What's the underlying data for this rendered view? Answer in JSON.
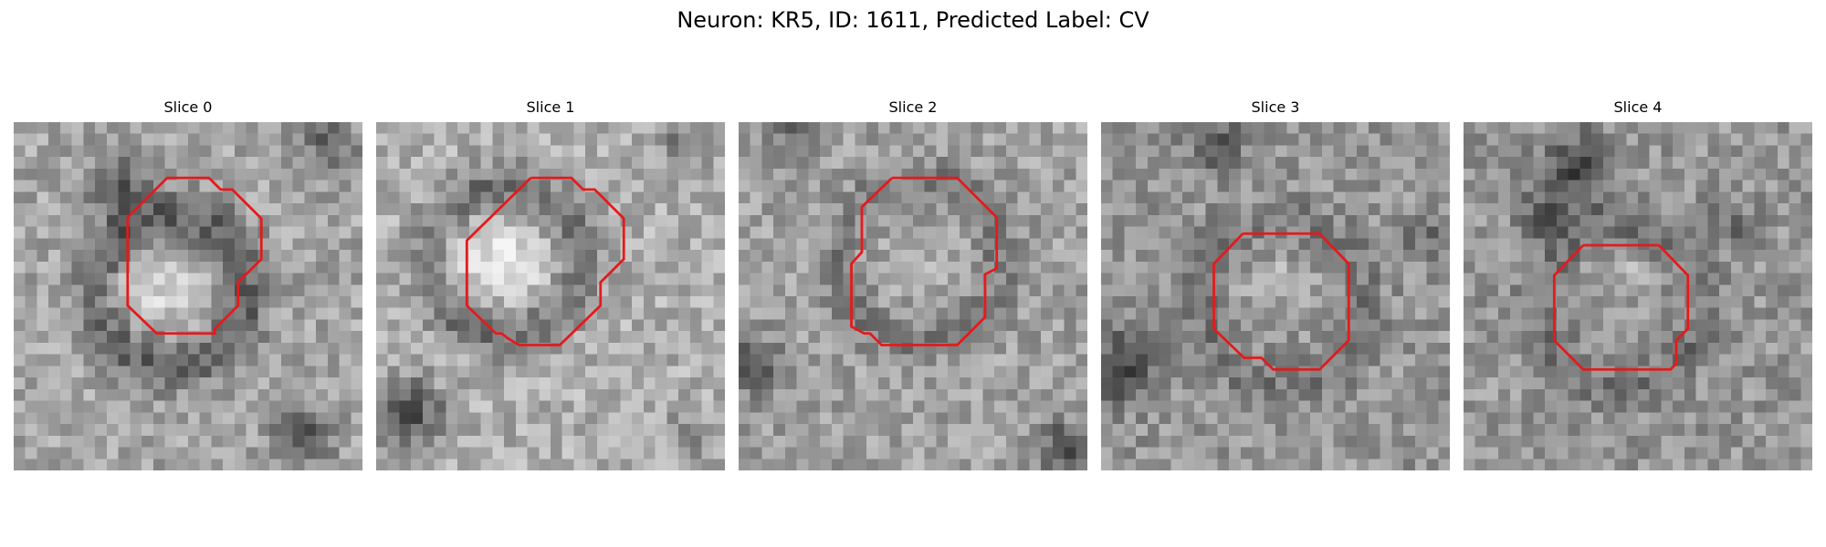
{
  "figure": {
    "title": "Neuron: KR5, ID: 1611, Predicted Label: CV"
  },
  "panels": [
    {
      "title": "Slice 0",
      "contour_color": "#e41a1c"
    },
    {
      "title": "Slice 1",
      "contour_color": "#e41a1c"
    },
    {
      "title": "Slice 2",
      "contour_color": "#e41a1c"
    },
    {
      "title": "Slice 3",
      "contour_color": "#e41a1c"
    },
    {
      "title": "Slice 4",
      "contour_color": "#e41a1c"
    }
  ]
}
